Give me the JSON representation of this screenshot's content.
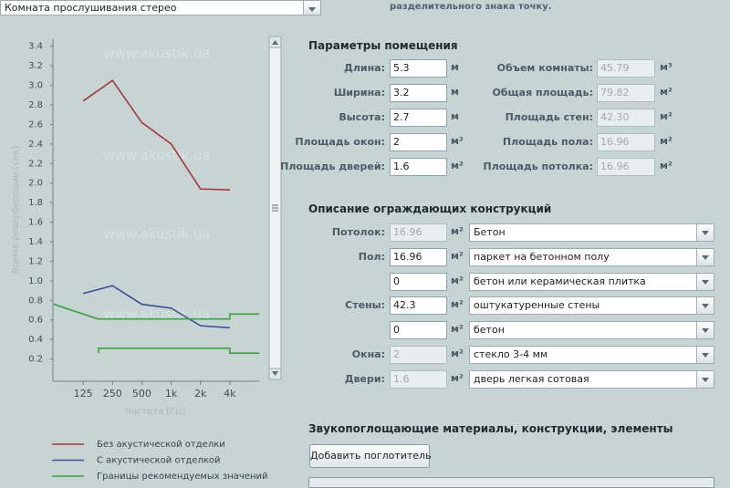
{
  "room_select": "Комната прослушивания стерео",
  "note": "разделительного знака точку.",
  "chart_data": {
    "type": "line",
    "y_label": "Время реверберации [сек]",
    "x_label": "Частота [Гц]",
    "xscale": "log",
    "xlim": [
      62.5,
      8000
    ],
    "xticks": [
      125,
      250,
      500,
      {
        "value": 1000,
        "label": "1k"
      },
      {
        "value": 2000,
        "label": "2k"
      },
      {
        "value": 4000,
        "label": "4k"
      }
    ],
    "ylim": [
      0,
      3.5
    ],
    "yticks": [
      0.2,
      0.4,
      0.6,
      0.8,
      {
        "value": 1,
        "label": "1.0"
      },
      1.2,
      1.4,
      1.6,
      1.8,
      {
        "value": 2,
        "label": "2.0"
      },
      2.2,
      2.4,
      2.6,
      2.8,
      {
        "value": 3,
        "label": "3.0"
      },
      3.2,
      3.4
    ],
    "watermark": "www.akustik.ua",
    "legend": "bottom",
    "series": [
      {
        "name": "Без акустической отделки",
        "color": "#a8363a",
        "x": [
          125,
          250,
          500,
          1000,
          2000,
          4000
        ],
        "values": [
          2.84,
          3.05,
          2.62,
          2.4,
          1.94,
          1.93
        ]
      },
      {
        "name": "С акустической отделкой",
        "color": "#3b4d9c",
        "x": [
          125,
          250,
          500,
          1000,
          2000,
          4000
        ],
        "values": [
          0.87,
          0.95,
          0.76,
          0.72,
          0.54,
          0.52
        ]
      },
      {
        "name": "Границы рекомендуемых значений",
        "color": "#3aa23f",
        "x": [
          62.5,
          177,
          4000,
          4000,
          8000,
          null,
          180,
          180,
          4000,
          4000,
          8000
        ],
        "values": [
          0.76,
          0.61,
          0.61,
          0.66,
          0.66,
          null,
          0.26,
          0.31,
          0.31,
          0.26,
          0.26
        ]
      }
    ]
  },
  "room_params": {
    "title": "Параметры помещения",
    "left": [
      {
        "label": "Длина:",
        "value": "5.3",
        "unit": "м"
      },
      {
        "label": "Ширина:",
        "value": "3.2",
        "unit": "м"
      },
      {
        "label": "Высота:",
        "value": "2.7",
        "unit": "м"
      },
      {
        "label": "Площадь окон:",
        "value": "2",
        "unit": "м²"
      },
      {
        "label": "Площадь дверей:",
        "value": "1.6",
        "unit": "м²"
      }
    ],
    "right": [
      {
        "label": "Объем комнаты:",
        "value": "45.79",
        "unit": "м³"
      },
      {
        "label": "Общая площадь:",
        "value": "79.82",
        "unit": "м²"
      },
      {
        "label": "Площадь стен:",
        "value": "42.30",
        "unit": "м²"
      },
      {
        "label": "Площадь пола:",
        "value": "16.96",
        "unit": "м²"
      },
      {
        "label": "Площадь потолка:",
        "value": "16.96",
        "unit": "м²"
      }
    ]
  },
  "constructions": {
    "title": "Описание ограждающих конструкций",
    "rows": [
      {
        "label": "Потолок:",
        "value": "16.96",
        "unit": "м²",
        "material": "Бетон",
        "disabled": true
      },
      {
        "label": "Пол:",
        "value": "16.96",
        "unit": "м²",
        "material": "паркет на бетонном полу",
        "disabled": false
      },
      {
        "value": "0",
        "unit": "м²",
        "material": "бетон или керамическая плитка",
        "disabled": false
      },
      {
        "label": "Стены:",
        "value": "42.3",
        "unit": "м²",
        "material": "оштукатуренные стены",
        "disabled": false
      },
      {
        "value": "0",
        "unit": "м²",
        "material": "бетон",
        "disabled": false
      },
      {
        "label": "Окна:",
        "value": "2",
        "unit": "м²",
        "material": "стекло 3-4 мм",
        "disabled": true
      },
      {
        "label": "Двери:",
        "value": "1.6",
        "unit": "м²",
        "material": "дверь легкая сотовая",
        "disabled": true
      }
    ]
  },
  "absorbers": {
    "title": "Звукопоглощающие материалы, конструкции, элементы",
    "button": "Добавить поглотитель"
  }
}
